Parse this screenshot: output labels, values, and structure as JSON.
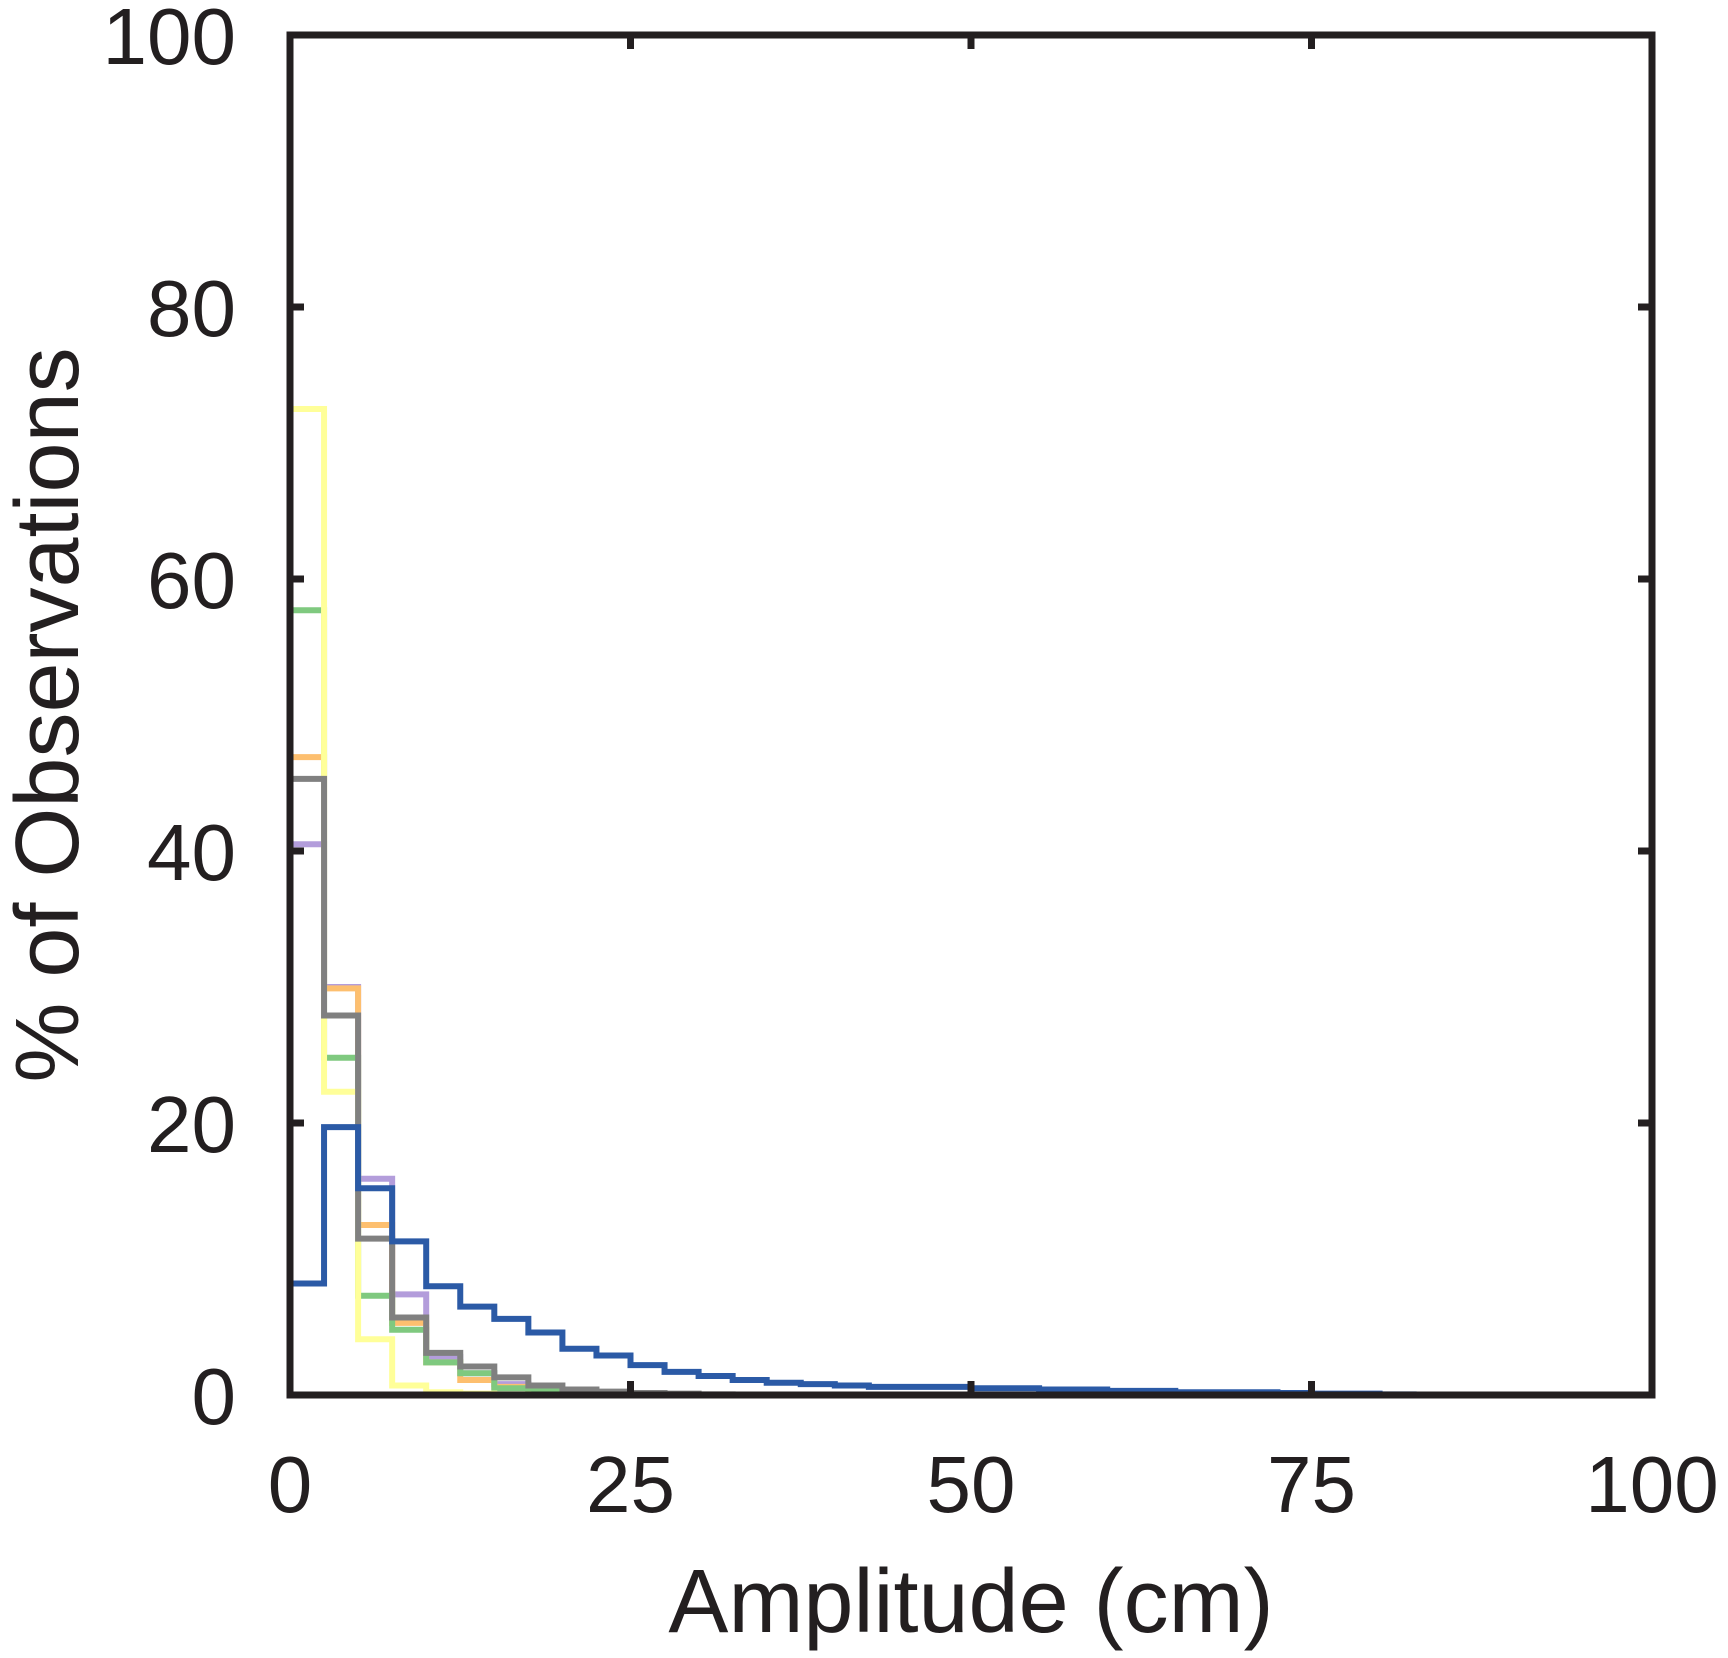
{
  "chart_data": {
    "type": "line",
    "subtype": "stairs histogram",
    "title": "",
    "xlabel": "Amplitude (cm)",
    "ylabel": "% of Observations",
    "xlim": [
      0,
      100
    ],
    "ylim": [
      0,
      100
    ],
    "x_ticks": [
      0,
      25,
      50,
      75,
      100
    ],
    "y_ticks": [
      0,
      20,
      40,
      60,
      80,
      100
    ],
    "x_tick_labels": [
      "0",
      "25",
      "50",
      "75",
      "100"
    ],
    "y_tick_labels": [
      "0",
      "20",
      "40",
      "60",
      "80",
      "100"
    ],
    "grid": false,
    "legend": "none",
    "bin_width": 2.5,
    "series": [
      {
        "color": "#b39ddb",
        "values": [
          40.5,
          30.0,
          15.9,
          7.4,
          2.8,
          1.6,
          0.8,
          0.4,
          0.2,
          0.1,
          0.05,
          0.0
        ]
      },
      {
        "color": "#fdbf6f",
        "values": [
          46.9,
          29.9,
          12.5,
          5.3,
          2.4,
          1.1,
          0.6,
          0.3,
          0.2,
          0.1,
          0.05,
          0.0
        ]
      },
      {
        "color": "#7fc97f",
        "values": [
          57.7,
          24.8,
          7.3,
          4.8,
          2.4,
          1.6,
          0.5,
          0.3,
          0.2,
          0.1,
          0.0
        ]
      },
      {
        "color": "#ffff99",
        "values": [
          72.5,
          22.3,
          4.1,
          0.7,
          0.2,
          0.1,
          0.05,
          0.0
        ]
      },
      {
        "color": "#808080",
        "values": [
          45.3,
          27.9,
          11.5,
          5.7,
          3.1,
          2.1,
          1.3,
          0.7,
          0.4,
          0.25,
          0.15,
          0.1,
          0.05,
          0.0
        ]
      },
      {
        "color": "#2b5aa6",
        "values": [
          8.2,
          19.7,
          15.2,
          11.3,
          8.0,
          6.5,
          5.6,
          4.6,
          3.4,
          2.9,
          2.2,
          1.7,
          1.4,
          1.1,
          0.9,
          0.8,
          0.7,
          0.6,
          0.6,
          0.6,
          0.5,
          0.5,
          0.4,
          0.4,
          0.3,
          0.3,
          0.2,
          0.2,
          0.2,
          0.15,
          0.1,
          0.1,
          0.05,
          0.0
        ]
      }
    ]
  }
}
